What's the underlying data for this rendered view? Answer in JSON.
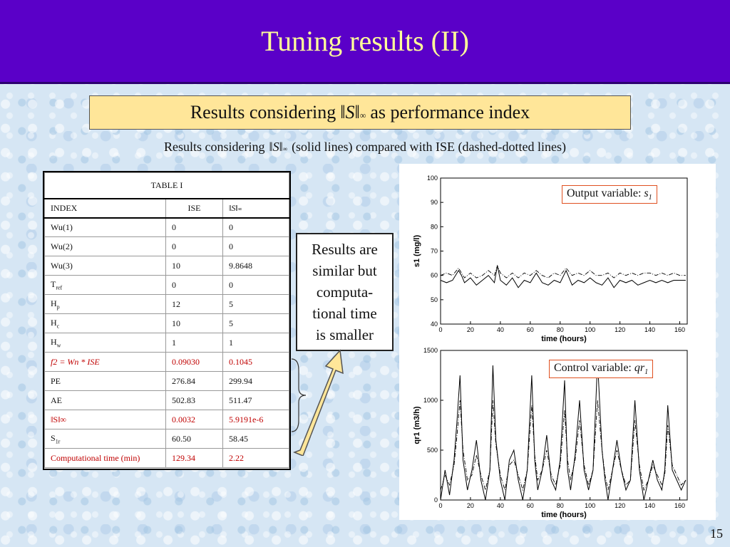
{
  "slide": {
    "title": "Tuning results (II)",
    "page_number": "15"
  },
  "banner": {
    "prefix": "Results considering",
    "norm_symbol": "S",
    "norm_sub": "∞",
    "suffix": "as performance index"
  },
  "subtitle": {
    "prefix": "Results considering",
    "suffix": "(solid lines) compared with ISE (dashed-dotted lines)"
  },
  "table": {
    "caption": "TABLE I",
    "headers": [
      "INDEX",
      "ISE"
    ],
    "rows": [
      {
        "index": "Wu(1)",
        "ise": "0",
        "sinf": "0"
      },
      {
        "index": "Wu(2)",
        "ise": "0",
        "sinf": "0"
      },
      {
        "index": "Wu(3)",
        "ise": "10",
        "sinf": "9.8648"
      },
      {
        "index": "T",
        "sub": "ref",
        "ise": "0",
        "sinf": "0"
      },
      {
        "index": "H",
        "sub": "p",
        "ise": "12",
        "sinf": "5"
      },
      {
        "index": "H",
        "sub": "c",
        "ise": "10",
        "sinf": "5"
      },
      {
        "index": "H",
        "sub": "w",
        "ise": "1",
        "sinf": "1"
      },
      {
        "index": "f2 = Wn * ISE",
        "ise": "0.09030",
        "sinf": "0.1045",
        "highlight": true
      },
      {
        "index": "PE",
        "ise": "276.84",
        "sinf": "299.94"
      },
      {
        "index": "AE",
        "ise": "502.83",
        "sinf": "511.47"
      },
      {
        "index": "‖S‖∞",
        "ise": "0.0032",
        "sinf": "5.9191e-6",
        "highlight": true
      },
      {
        "index": "S",
        "sub": "1r",
        "ise": "60.50",
        "sinf": "58.45"
      },
      {
        "index": "Computational time (min)",
        "ise": "129.34",
        "sinf": "2.22",
        "highlight": true
      }
    ]
  },
  "callout": {
    "lines": [
      "Results are",
      "similar but",
      "computa-",
      "tional time",
      "is smaller"
    ]
  },
  "chart_data": [
    {
      "type": "line",
      "label_prefix": "Output variable:",
      "label_var": "s",
      "label_sub": "1",
      "xlabel": "time (hours)",
      "ylabel": "s1 (mg/l)",
      "xlim": [
        0,
        165
      ],
      "ylim": [
        40,
        100
      ],
      "xticks": [
        0,
        20,
        40,
        60,
        80,
        100,
        120,
        140,
        160
      ],
      "yticks": [
        40,
        50,
        60,
        70,
        80,
        90,
        100
      ],
      "x": [
        0,
        4,
        8,
        12,
        14,
        16,
        20,
        24,
        28,
        32,
        36,
        38,
        40,
        44,
        48,
        52,
        56,
        60,
        64,
        68,
        72,
        76,
        80,
        84,
        88,
        92,
        96,
        100,
        104,
        108,
        112,
        116,
        120,
        124,
        128,
        132,
        136,
        140,
        144,
        148,
        152,
        156,
        160,
        164
      ],
      "series": [
        {
          "style": "solid",
          "values": [
            58,
            57,
            58,
            62,
            60,
            57,
            59,
            56,
            58,
            60,
            57,
            64,
            58,
            56,
            59,
            55,
            58,
            57,
            61,
            57,
            56,
            58,
            57,
            62,
            56,
            58,
            57,
            59,
            57,
            56,
            59,
            55,
            58,
            57,
            58,
            56,
            57,
            58,
            57,
            58,
            57,
            58,
            58,
            58
          ]
        },
        {
          "style": "dashdot",
          "values": [
            60,
            61,
            60,
            63,
            61,
            59,
            61,
            59,
            60,
            62,
            60,
            64,
            61,
            59,
            61,
            59,
            61,
            60,
            62,
            60,
            59,
            61,
            60,
            63,
            60,
            61,
            60,
            62,
            60,
            60,
            61,
            59,
            61,
            60,
            61,
            60,
            61,
            61,
            60,
            61,
            60,
            61,
            60,
            60
          ]
        }
      ]
    },
    {
      "type": "line",
      "label_prefix": "Control variable:",
      "label_var": "qr",
      "label_sub": "1",
      "xlabel": "time (hours)",
      "ylabel": "qr1 (m3/h)",
      "xlim": [
        0,
        165
      ],
      "ylim": [
        0,
        1500
      ],
      "xticks": [
        0,
        20,
        40,
        60,
        80,
        100,
        120,
        140,
        160
      ],
      "yticks": [
        0,
        500,
        1000,
        1500
      ],
      "x": [
        0,
        3,
        6,
        9,
        11,
        13,
        15,
        18,
        21,
        24,
        27,
        30,
        33,
        35,
        37,
        40,
        43,
        46,
        49,
        52,
        55,
        58,
        61,
        63,
        65,
        68,
        71,
        74,
        77,
        80,
        83,
        85,
        87,
        90,
        93,
        96,
        99,
        102,
        105,
        108,
        110,
        112,
        115,
        118,
        121,
        124,
        127,
        130,
        133,
        136,
        139,
        142,
        145,
        148,
        150,
        152,
        155,
        158,
        161,
        164
      ],
      "series": [
        {
          "style": "solid",
          "values": [
            0,
            300,
            50,
            400,
            800,
            1250,
            400,
            100,
            300,
            600,
            200,
            0,
            300,
            1350,
            600,
            200,
            0,
            400,
            500,
            200,
            0,
            300,
            1250,
            400,
            100,
            300,
            650,
            200,
            100,
            400,
            1200,
            300,
            100,
            450,
            1000,
            300,
            100,
            300,
            1400,
            500,
            200,
            0,
            300,
            600,
            300,
            100,
            200,
            1000,
            300,
            0,
            200,
            400,
            200,
            100,
            300,
            950,
            300,
            200,
            100,
            200
          ]
        },
        {
          "style": "dashdot",
          "values": [
            100,
            250,
            150,
            350,
            650,
            1000,
            500,
            200,
            250,
            450,
            250,
            100,
            300,
            1000,
            550,
            250,
            100,
            350,
            400,
            250,
            100,
            300,
            950,
            450,
            200,
            300,
            500,
            250,
            150,
            350,
            900,
            400,
            200,
            400,
            800,
            350,
            150,
            300,
            1000,
            500,
            250,
            100,
            300,
            500,
            300,
            150,
            200,
            800,
            350,
            100,
            200,
            350,
            250,
            150,
            250,
            750,
            350,
            250,
            150,
            200
          ]
        }
      ]
    }
  ]
}
